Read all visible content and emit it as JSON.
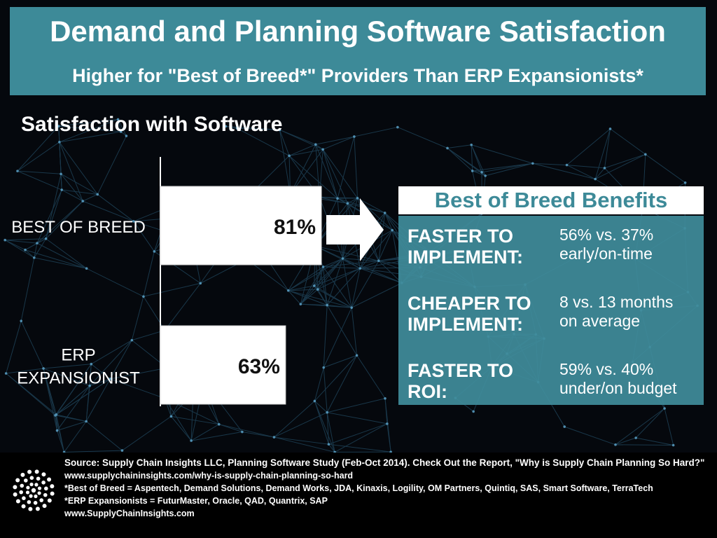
{
  "header": {
    "title": "Demand and Planning Software Satisfaction",
    "subtitle": "Higher for \"Best of Breed*\" Providers Than ERP Expansionists*"
  },
  "section_heading": "Satisfaction with Software",
  "chart_data": {
    "type": "bar",
    "orientation": "horizontal",
    "title": "Satisfaction with Software",
    "categories": [
      "BEST OF BREED",
      "ERP EXPANSIONIST"
    ],
    "values": [
      81,
      63
    ],
    "data_labels": [
      "81%",
      "63%"
    ],
    "unit": "%",
    "xlim": [
      0,
      100
    ],
    "grid": false,
    "bar_color": "#ffffff"
  },
  "benefits": {
    "title": "Best of Breed Benefits",
    "items": [
      {
        "label_lines": [
          "FASTER TO",
          "IMPLEMENT:"
        ],
        "value_lines": [
          "56% vs. 37%",
          "early/on-time"
        ]
      },
      {
        "label_lines": [
          "CHEAPER TO",
          "IMPLEMENT:"
        ],
        "value_lines": [
          "8 vs. 13 months",
          "on average"
        ]
      },
      {
        "label_lines": [
          "FASTER TO",
          "ROI:"
        ],
        "value_lines": [
          "59% vs. 40%",
          "under/on budget"
        ]
      }
    ]
  },
  "footer": {
    "source": "Source: Supply Chain Insights LLC, Planning Software Study (Feb-Oct 2014). Check Out the Report, \"Why is Supply Chain Planning So Hard?\"",
    "report_url": "www.supplychaininsights.com/why-is-supply-chain-planning-so-hard",
    "best_of_breed_note": "*Best of Breed = Aspentech, Demand Solutions, Demand Works, JDA, Kinaxis, Logility, OM Partners, Quintiq, SAS, Smart Software, TerraTech",
    "erp_note": "*ERP Expansionists = FuturMaster, Oracle, QAD, Quantrix, SAP",
    "website": "www.SupplyChainInsights.com"
  },
  "colors": {
    "header_bg": "#3d8a98",
    "panel_bg": "#3f8c9b",
    "benefits_title": "#3d8a98",
    "background": "#05080d"
  },
  "icons": {
    "logo": "dot-burst-logo-icon",
    "arrow": "right-arrow-icon"
  }
}
